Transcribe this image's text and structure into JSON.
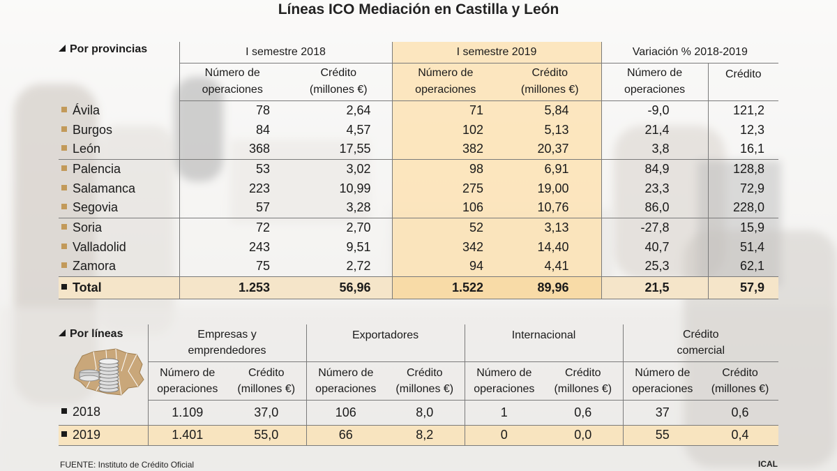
{
  "title": "Líneas ICO Mediación en Castilla y León",
  "provinces": {
    "section_label": "Por provincias",
    "periods": [
      "I semestre 2018",
      "I semestre 2019",
      "Variación % 2018-2019"
    ],
    "col_ops": "Número de operaciones",
    "col_ops_l1": "Número de",
    "col_ops_l2": "operaciones",
    "col_credit_l1": "Crédito",
    "col_credit_l2": "(millones €)",
    "col_credit_var": "Crédito",
    "rows": [
      {
        "name": "Ávila",
        "ops18": "78",
        "cr18": "2,64",
        "ops19": "71",
        "cr19": "5,84",
        "vops": "-9,0",
        "vcr": "121,2"
      },
      {
        "name": "Burgos",
        "ops18": "84",
        "cr18": "4,57",
        "ops19": "102",
        "cr19": "5,13",
        "vops": "21,4",
        "vcr": "12,3"
      },
      {
        "name": "León",
        "ops18": "368",
        "cr18": "17,55",
        "ops19": "382",
        "cr19": "20,37",
        "vops": "3,8",
        "vcr": "16,1"
      },
      {
        "name": "Palencia",
        "ops18": "53",
        "cr18": "3,02",
        "ops19": "98",
        "cr19": "6,91",
        "vops": "84,9",
        "vcr": "128,8"
      },
      {
        "name": "Salamanca",
        "ops18": "223",
        "cr18": "10,99",
        "ops19": "275",
        "cr19": "19,00",
        "vops": "23,3",
        "vcr": "72,9"
      },
      {
        "name": "Segovia",
        "ops18": "57",
        "cr18": "3,28",
        "ops19": "106",
        "cr19": "10,76",
        "vops": "86,0",
        "vcr": "228,0"
      },
      {
        "name": "Soria",
        "ops18": "72",
        "cr18": "2,70",
        "ops19": "52",
        "cr19": "3,13",
        "vops": "-27,8",
        "vcr": "15,9"
      },
      {
        "name": "Valladolid",
        "ops18": "243",
        "cr18": "9,51",
        "ops19": "342",
        "cr19": "14,40",
        "vops": "40,7",
        "vcr": "51,4"
      },
      {
        "name": "Zamora",
        "ops18": "75",
        "cr18": "2,72",
        "ops19": "94",
        "cr19": "4,41",
        "vops": "25,3",
        "vcr": "62,1"
      }
    ],
    "total": {
      "name": "Total",
      "ops18": "1.253",
      "cr18": "56,96",
      "ops19": "1.522",
      "cr19": "89,96",
      "vops": "21,5",
      "vcr": "57,9"
    }
  },
  "lines": {
    "section_label": "Por líneas",
    "groups": [
      {
        "l1": "Empresas y",
        "l2": "emprendedores"
      },
      {
        "l1": "Exportadores",
        "l2": ""
      },
      {
        "l1": "Internacional",
        "l2": ""
      },
      {
        "l1": "Crédito",
        "l2": "comercial"
      }
    ],
    "col_ops_l1": "Número de",
    "col_ops_l2": "operaciones",
    "col_credit_l1": "Crédito",
    "col_credit_l2": "(millones €)",
    "rows": [
      {
        "year": "2018",
        "v": [
          "1.109",
          "37,0",
          "106",
          "8,0",
          "1",
          "0,6",
          "37",
          "0,6"
        ]
      },
      {
        "year": "2019",
        "v": [
          "1.401",
          "55,0",
          "66",
          "8,2",
          "0",
          "0,0",
          "55",
          "0,4"
        ]
      }
    ]
  },
  "footer": {
    "source": "FUENTE: Instituto de Crédito Oficial",
    "brand": "ICAL"
  },
  "colors": {
    "highlight": "#f8dba7",
    "bullet_brown": "#c29a5a",
    "map_fill": "#c9a77a"
  },
  "icons": {
    "section_marker": "triangle-icon",
    "province_bullet": "square-bullet-icon",
    "map": "castilla-leon-map-coins-icon"
  }
}
